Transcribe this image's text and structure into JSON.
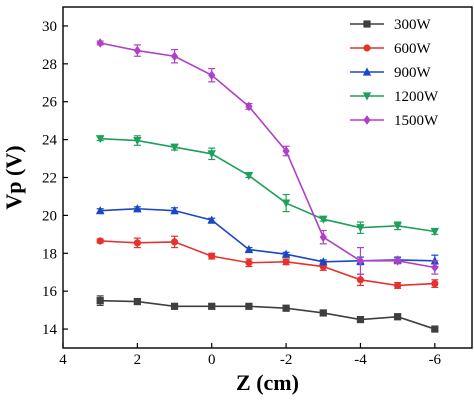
{
  "chart_data": {
    "type": "line",
    "title": "",
    "xlabel": "Z (cm)",
    "ylabel": "Vp (V)",
    "x_reversed": true,
    "xlim": [
      4,
      -7
    ],
    "ylim": [
      13,
      31
    ],
    "xticks": [
      4,
      2,
      0,
      -2,
      -4,
      -6
    ],
    "yticks": [
      14,
      16,
      18,
      20,
      22,
      24,
      26,
      28,
      30
    ],
    "grid": false,
    "legend_position": "top-right",
    "x": [
      3,
      2,
      1,
      0,
      -1,
      -2,
      -3,
      -4,
      -5,
      -6
    ],
    "series": [
      {
        "name": "300W",
        "color": "#3f3f3f",
        "marker": "square",
        "values": [
          15.5,
          15.45,
          15.2,
          15.2,
          15.2,
          15.1,
          14.85,
          14.5,
          14.65,
          14.0
        ],
        "errors": [
          0.25,
          0.15,
          0.1,
          0.1,
          0.1,
          0.1,
          0.15,
          0.1,
          0.15,
          0.1
        ]
      },
      {
        "name": "600W",
        "color": "#e5322e",
        "marker": "circle",
        "values": [
          18.65,
          18.55,
          18.6,
          17.85,
          17.5,
          17.55,
          17.3,
          16.6,
          16.3,
          16.4
        ],
        "errors": [
          0.1,
          0.25,
          0.3,
          0.15,
          0.2,
          0.15,
          0.2,
          0.3,
          0.15,
          0.2
        ]
      },
      {
        "name": "900W",
        "color": "#1a48c4",
        "marker": "triangle-up",
        "values": [
          20.25,
          20.35,
          20.25,
          19.75,
          18.2,
          17.95,
          17.55,
          17.6,
          17.65,
          17.6
        ],
        "errors": [
          0.1,
          0.1,
          0.15,
          0.1,
          0.1,
          0.1,
          0.1,
          0.2,
          0.15,
          0.3
        ]
      },
      {
        "name": "1200W",
        "color": "#1ea05a",
        "marker": "triangle-down",
        "values": [
          24.05,
          23.95,
          23.6,
          23.25,
          22.1,
          20.65,
          19.8,
          19.35,
          19.45,
          19.15
        ],
        "errors": [
          0.1,
          0.25,
          0.15,
          0.3,
          0.1,
          0.45,
          0.1,
          0.3,
          0.2,
          0.15
        ]
      },
      {
        "name": "1500W",
        "color": "#b040c8",
        "marker": "diamond",
        "values": [
          29.1,
          28.7,
          28.4,
          27.4,
          25.75,
          23.4,
          18.85,
          17.6,
          17.6,
          17.25
        ],
        "errors": [
          0.1,
          0.3,
          0.35,
          0.35,
          0.15,
          0.25,
          0.35,
          0.7,
          0.15,
          0.35
        ]
      }
    ]
  }
}
